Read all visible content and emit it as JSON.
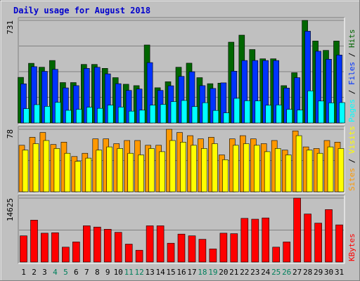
{
  "chart_data": {
    "type": "bar",
    "title": "Daily usage for August 2018",
    "categories": [
      "1",
      "2",
      "3",
      "4",
      "5",
      "6",
      "7",
      "8",
      "9",
      "10",
      "11",
      "12",
      "13",
      "14",
      "15",
      "16",
      "17",
      "18",
      "19",
      "20",
      "21",
      "22",
      "23",
      "24",
      "25",
      "26",
      "27",
      "28",
      "29",
      "30",
      "31"
    ],
    "weekend_days": [
      "4",
      "5",
      "11",
      "12",
      "18",
      "19",
      "25",
      "26"
    ],
    "panels": [
      {
        "name": "hits-files-pages",
        "max_label": "731",
        "ylim": [
          0,
          731
        ],
        "series": [
          {
            "name": "Hits",
            "color": "#006600",
            "values": [
              325,
              425,
              397,
              445,
              288,
              288,
              417,
              417,
              389,
              323,
              276,
              266,
              556,
              251,
              294,
              397,
              426,
              323,
              280,
              284,
              576,
              626,
              523,
              457,
              457,
              266,
              358,
              731,
              584,
              517,
              584
            ]
          },
          {
            "name": "Files",
            "color": "#0033ff",
            "values": [
              279,
              401,
              368,
              382,
              250,
              266,
              389,
              397,
              350,
              280,
              232,
              242,
              430,
              232,
              265,
              332,
              365,
              266,
              246,
              286,
              369,
              445,
              445,
              445,
              445,
              249,
              323,
              654,
              511,
              454,
              484
            ]
          },
          {
            "name": "Pages",
            "color": "#00ffff",
            "values": [
              102,
              130,
              118,
              147,
              90,
              97,
              112,
              104,
              127,
              113,
              84,
              91,
              127,
              132,
              152,
              160,
              117,
              144,
              89,
              72,
              175,
              158,
              157,
              126,
              128,
              97,
              92,
              229,
              156,
              143,
              145
            ]
          }
        ]
      },
      {
        "name": "visits-sites",
        "max_label": "78",
        "ylim": [
          0,
          78
        ],
        "series": [
          {
            "name": "Visits",
            "color": "#ff9900",
            "values": [
              58,
              68,
              74,
              59,
              62,
              44,
              48,
              66,
              66,
              60,
              64,
              64,
              58,
              58,
              78,
              74,
              70,
              66,
              68,
              46,
              66,
              70,
              66,
              60,
              64,
              52,
              76,
              56,
              54,
              64,
              62
            ]
          },
          {
            "name": "Sites",
            "color": "#ffff00",
            "values": [
              52,
              60,
              64,
              54,
              48,
              38,
              42,
              52,
              56,
              54,
              48,
              46,
              54,
              50,
              64,
              62,
              58,
              54,
              60,
              40,
              58,
              60,
              58,
              50,
              54,
              46,
              70,
              52,
              48,
              56,
              54
            ]
          }
        ]
      },
      {
        "name": "kbytes",
        "max_label": "14625",
        "ylim": [
          0,
          14625
        ],
        "series": [
          {
            "name": "KBytes",
            "color": "#ff0000",
            "values": [
              6000,
              9600,
              6600,
              6700,
              3400,
              4600,
              8300,
              8000,
              7500,
              6800,
              4100,
              2700,
              8300,
              8300,
              4300,
              6400,
              6000,
              5200,
              3000,
              6600,
              6500,
              10000,
              9800,
              10100,
              3400,
              4600,
              14625,
              11000,
              8900,
              12000,
              8500
            ]
          }
        ]
      }
    ],
    "legend": {
      "top": [
        "Pages",
        "Files",
        "Hits"
      ],
      "middle": [
        "Sites",
        "Visits"
      ],
      "bottom": [
        "KBytes"
      ]
    },
    "colors": {
      "background": "#c0c0c0",
      "frame_light": "#ffffff",
      "frame_dark": "#808080",
      "title": "#0000cc",
      "weekday_label": "#000000",
      "weekend_label": "#00805c",
      "gridline": "#808080",
      "bar_outline": "#000000"
    }
  }
}
